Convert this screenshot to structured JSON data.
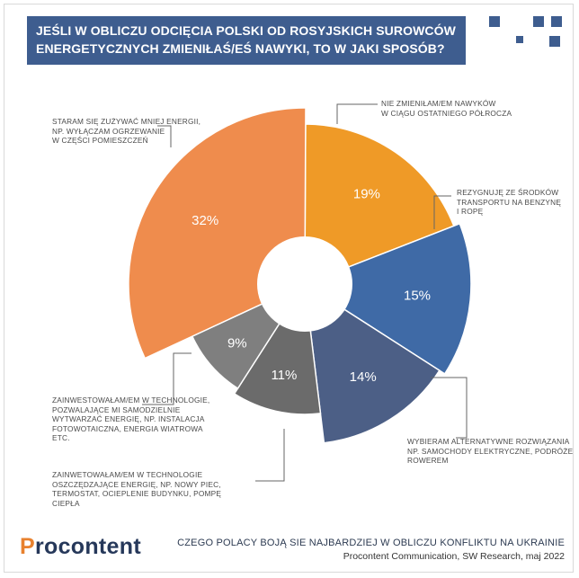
{
  "header": {
    "title": "JEŚLI W OBLICZU ODCIĘCIA POLSKI OD ROSYJSKICH SUROWCÓW ENERGETYCZNYCH ZMIENIŁAŚ/EŚ NAWYKI, TO W JAKI SPOSÓB?"
  },
  "chart_data": {
    "type": "pie",
    "title": "JEŚLI W OBLICZU ODCIĘCIA POLSKI OD ROSYJSKICH SUROWCÓW ENERGETYCZNYCH ZMIENIŁAŚ/EŚ NAWYKI, TO W JAKI SPOSÓB?",
    "series": [
      {
        "name": "Nie zmieniłam/em nawyków w ciągu ostatniego półrocza",
        "value": 19,
        "label": "19%",
        "color": "#ef9a27"
      },
      {
        "name": "Rezygnuję ze środków transportu na benzynę i ropę",
        "value": 15,
        "label": "15%",
        "color": "#3f6aa6"
      },
      {
        "name": "Wybieram alternatywne rozwiązania np. samochody elektryczne, podróże rowerem",
        "value": 14,
        "label": "14%",
        "color": "#4c5f86"
      },
      {
        "name": "Zainwetowałam/em w technologie oszczędzające energię, np. nowy piec, termostat, ocieplenie budynku, pompę ciepła",
        "value": 11,
        "label": "11%",
        "color": "#6b6b6b"
      },
      {
        "name": "Zainwestowałam/em w technologie, pozwalające mi samodzielnie wytwarzać energię, np. instalacja fotowotaiczna, energia wiatrowa etc.",
        "value": 9,
        "label": "9%",
        "color": "#7f7f7f"
      },
      {
        "name": "Staram się zużywać mniej energii, np. wyłączam ogrzewanie w części pomieszczeń",
        "value": 32,
        "label": "32%",
        "color": "#ef8c4d"
      }
    ]
  },
  "annotations": {
    "a1": "Nie zmieniłam/em nawyków\nw ciągu ostatniego półrocza",
    "a2": "Rezygnuję ze środków\ntransportu na benzynę\ni ropę",
    "a3": "Wybieram alternatywne rozwiązania\nnp. samochody elektryczne, podróże\nrowerem",
    "a4": "Zainwetowałam/em w technologie\noszczędzające energię, np. nowy piec,\ntermostat, ocieplenie budynku, pompę\nciepła",
    "a5": "Zainwestowałam/em w technologie,\npozwalające mi samodzielnie\nwytwarzać energię, np. instalacja\nfotowotaiczna, energia wiatrowa\netc.",
    "a6": "Staram się zużywać mniej energii,\nnp. wyłączam ogrzewanie\nw części pomieszczeń"
  },
  "footer": {
    "logo_first": "P",
    "logo_rest": "rocontent",
    "title": "CZEGO POLACY BOJĄ SIE NAJBARDZIEJ W OBLICZU KONFLIKTU NA UKRAINIE",
    "source": "Procontent Communication, SW Research, maj 2022"
  },
  "colors": {
    "accent": "#3e5d8f",
    "line": "#666666"
  }
}
